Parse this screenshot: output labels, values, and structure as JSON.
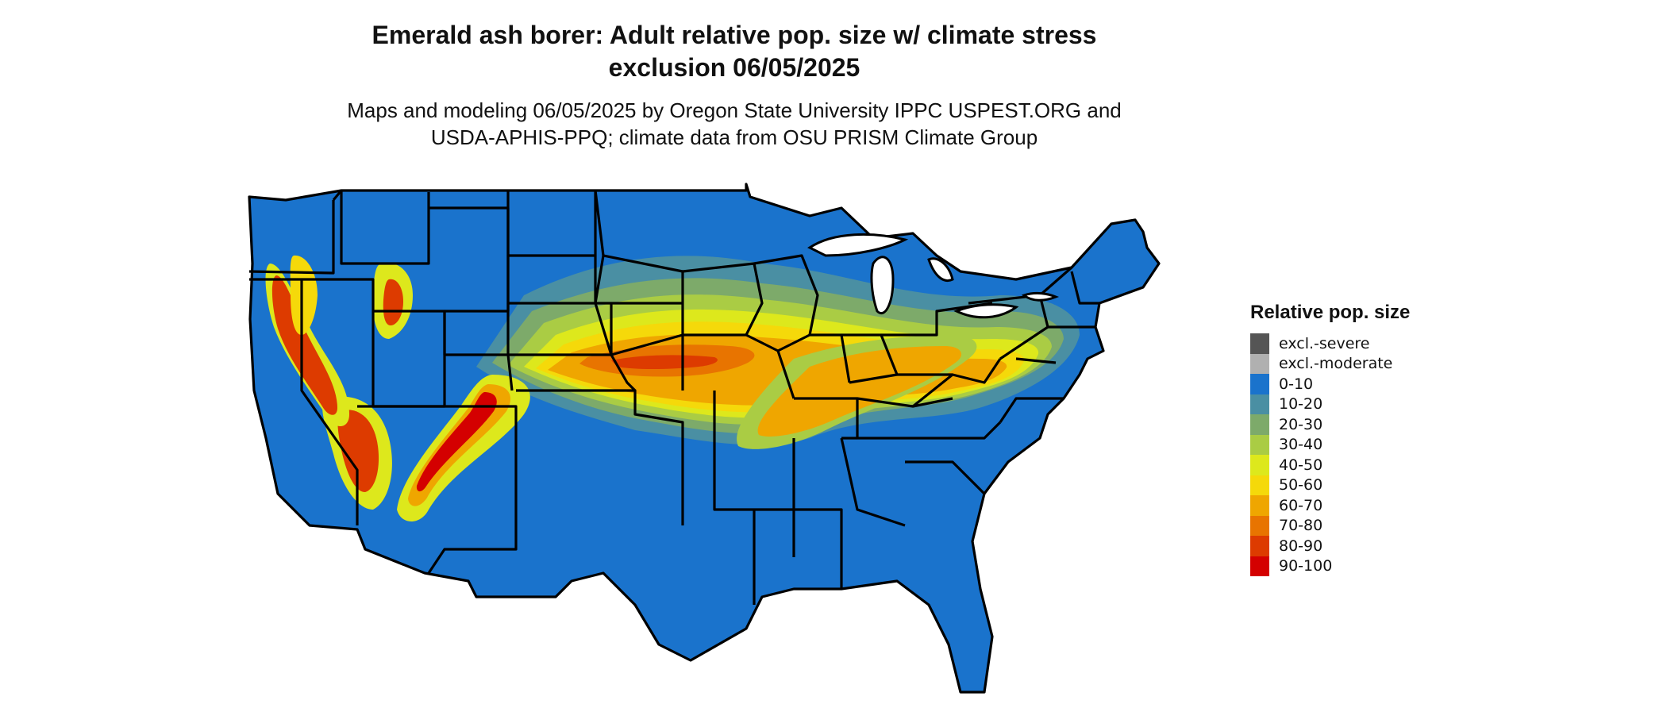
{
  "title_line1": "Emerald ash borer: Adult relative pop. size w/ climate stress",
  "title_line2": "exclusion 06/05/2025",
  "subtitle_line1": "Maps and modeling 06/05/2025 by Oregon State University IPPC USPEST.ORG and",
  "subtitle_line2": "USDA-APHIS-PPQ; climate data from OSU PRISM Climate Group",
  "legend": {
    "title": "Relative pop. size",
    "items": [
      {
        "label": "excl.-severe",
        "color": "#555555"
      },
      {
        "label": "excl.-moderate",
        "color": "#b0b0b0"
      },
      {
        "label": "0-10",
        "color": "#1a73cc"
      },
      {
        "label": "10-20",
        "color": "#4a8fa3"
      },
      {
        "label": "20-30",
        "color": "#7daa6a"
      },
      {
        "label": "30-40",
        "color": "#aacc44"
      },
      {
        "label": "40-50",
        "color": "#dde81c"
      },
      {
        "label": "50-60",
        "color": "#f5d90a"
      },
      {
        "label": "60-70",
        "color": "#efa600"
      },
      {
        "label": "70-80",
        "color": "#e87400"
      },
      {
        "label": "80-90",
        "color": "#dd3b00"
      },
      {
        "label": "90-100",
        "color": "#d40000"
      }
    ]
  }
}
